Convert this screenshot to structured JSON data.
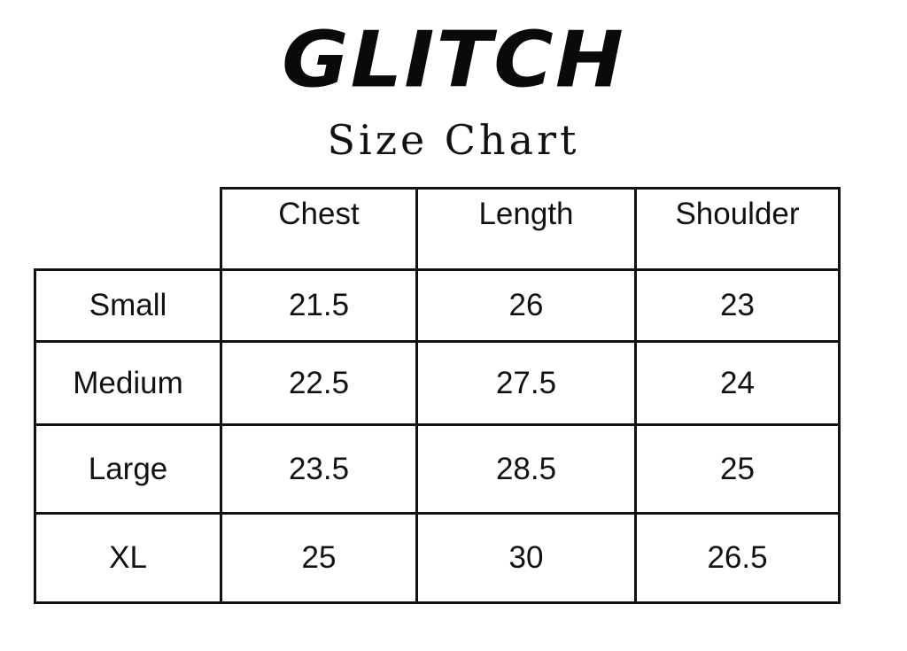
{
  "brand": "GLITCH",
  "subtitle": "Size Chart",
  "table": {
    "columns": [
      "Chest",
      "Length",
      "Shoulder"
    ],
    "rows": [
      {
        "size": "Small",
        "values": [
          "21.5",
          "26",
          "23"
        ]
      },
      {
        "size": "Medium",
        "values": [
          "22.5",
          "27.5",
          "24"
        ]
      },
      {
        "size": "Large",
        "values": [
          "23.5",
          "28.5",
          "25"
        ]
      },
      {
        "size": "XL",
        "values": [
          "25",
          "30",
          "26.5"
        ]
      }
    ]
  }
}
